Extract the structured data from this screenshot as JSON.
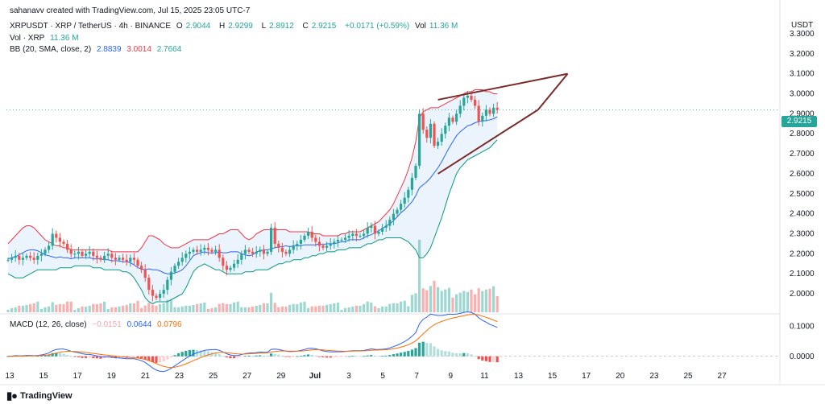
{
  "header": {
    "credit": "sahanavv created with TradingView.com, Jul 15, 2025 23:05 UTC-7",
    "symbol": "XRPUSDT · XRP / TetherUS · 4h · BINANCE",
    "o_label": "O",
    "o_value": "2.9044",
    "h_label": "H",
    "h_value": "2.9299",
    "l_label": "L",
    "l_value": "2.8912",
    "c_label": "C",
    "c_value": "2.9215",
    "change": "+0.0171 (+0.59%)",
    "vol_label": "Vol",
    "vol_value": "11.36 M",
    "vol_line_label": "Vol · XRP",
    "vol_line_value": "11.36 M",
    "bb_label": "BB (20, SMA, close, 2)",
    "bb_basis": "2.8839",
    "bb_upper": "3.0014",
    "bb_lower": "2.7664",
    "macd_label": "MACD (12, 26, close)",
    "macd_hist": "−0.0151",
    "macd_line": "0.0644",
    "macd_signal": "0.0796"
  },
  "axis_unit": "USDT",
  "last_price": "2.9215",
  "footer_logo": "TradingView",
  "colors": {
    "up": "#26a69a",
    "down": "#ef5350",
    "bb_upper": "#f23645",
    "bb_lower": "#089981",
    "bb_basis": "#2962ff",
    "bb_fill": "#e3f0fb",
    "macd": "#2962ff",
    "signal": "#ff6d00",
    "wedge": "#7b2a2a"
  },
  "chart_data": {
    "type": "candlestick",
    "timeframe": "4h",
    "x_ticks": [
      "13",
      "15",
      "17",
      "19",
      "21",
      "23",
      "25",
      "27",
      "29",
      "Jul",
      "3",
      "5",
      "7",
      "9",
      "11",
      "13",
      "15",
      "17",
      "20",
      "23",
      "25",
      "27"
    ],
    "y_ticks": [
      "3.3000",
      "3.2000",
      "3.1000",
      "3.0000",
      "2.9000",
      "2.8000",
      "2.7000",
      "2.6000",
      "2.5000",
      "2.4000",
      "2.3000",
      "2.2000",
      "2.1000",
      "2.0000"
    ],
    "ylim": [
      1.96,
      3.36
    ],
    "macd_ticks": [
      "0.1000",
      "0.0000"
    ],
    "macd_ylim": [
      -0.03,
      0.125
    ],
    "closes": [
      2.17,
      2.18,
      2.19,
      2.17,
      2.18,
      2.19,
      2.18,
      2.17,
      2.19,
      2.2,
      2.22,
      2.24,
      2.3,
      2.28,
      2.26,
      2.25,
      2.22,
      2.2,
      2.2,
      2.21,
      2.19,
      2.2,
      2.21,
      2.19,
      2.18,
      2.17,
      2.19,
      2.2,
      2.18,
      2.17,
      2.18,
      2.17,
      2.16,
      2.18,
      2.17,
      2.14,
      2.12,
      2.08,
      2.02,
      1.99,
      1.98,
      2.0,
      2.02,
      2.07,
      2.11,
      2.14,
      2.16,
      2.18,
      2.2,
      2.21,
      2.22,
      2.21,
      2.22,
      2.23,
      2.22,
      2.21,
      2.22,
      2.18,
      2.14,
      2.12,
      2.13,
      2.15,
      2.17,
      2.2,
      2.22,
      2.21,
      2.2,
      2.21,
      2.22,
      2.2,
      2.21,
      2.33,
      2.25,
      2.23,
      2.21,
      2.2,
      2.22,
      2.24,
      2.25,
      2.27,
      2.29,
      2.31,
      2.28,
      2.26,
      2.24,
      2.23,
      2.24,
      2.25,
      2.26,
      2.27,
      2.27,
      2.28,
      2.29,
      2.3,
      2.29,
      2.29,
      2.3,
      2.33,
      2.34,
      2.3,
      2.31,
      2.33,
      2.34,
      2.37,
      2.4,
      2.42,
      2.45,
      2.48,
      2.52,
      2.58,
      2.64,
      2.9,
      2.82,
      2.78,
      2.85,
      2.74,
      2.76,
      2.8,
      2.84,
      2.88,
      2.86,
      2.9,
      2.94,
      2.98,
      2.99,
      2.97,
      2.94,
      2.86,
      2.89,
      2.92,
      2.9,
      2.93,
      2.92
    ],
    "bb_upper": [
      2.25,
      2.27,
      2.29,
      2.31,
      2.33,
      2.34,
      2.34,
      2.33,
      2.31,
      2.29,
      2.27,
      2.26,
      2.25,
      2.24,
      2.24,
      2.23,
      2.23,
      2.22,
      2.22,
      2.22,
      2.22,
      2.22,
      2.22,
      2.22,
      2.22,
      2.22,
      2.22,
      2.22,
      2.21,
      2.21,
      2.21,
      2.21,
      2.21,
      2.21,
      2.21,
      2.21,
      2.23,
      2.26,
      2.29,
      2.29,
      2.28,
      2.27,
      2.25,
      2.24,
      2.23,
      2.23,
      2.23,
      2.24,
      2.25,
      2.26,
      2.27,
      2.27,
      2.27,
      2.27,
      2.27,
      2.28,
      2.29,
      2.3,
      2.3,
      2.31,
      2.32,
      2.32,
      2.32,
      2.3,
      2.28,
      2.27,
      2.28,
      2.3,
      2.31,
      2.32,
      2.32,
      2.32,
      2.32,
      2.32,
      2.32,
      2.32,
      2.31,
      2.31,
      2.31,
      2.31,
      2.31,
      2.31,
      2.3,
      2.3,
      2.3,
      2.29,
      2.29,
      2.29,
      2.29,
      2.29,
      2.3,
      2.3,
      2.31,
      2.31,
      2.31,
      2.31,
      2.32,
      2.33,
      2.34,
      2.35,
      2.36,
      2.38,
      2.4,
      2.42,
      2.45,
      2.49,
      2.53,
      2.57,
      2.62,
      2.68,
      2.76,
      2.88,
      2.91,
      2.92,
      2.93,
      2.93,
      2.93,
      2.94,
      2.95,
      2.96,
      2.97,
      2.98,
      2.99,
      3.0,
      3.01,
      3.01,
      3.02,
      3.02,
      3.02,
      3.01,
      3.01,
      3.0,
      3.0
    ],
    "bb_lower": [
      2.1,
      2.09,
      2.08,
      2.08,
      2.08,
      2.09,
      2.1,
      2.11,
      2.12,
      2.12,
      2.12,
      2.12,
      2.12,
      2.12,
      2.13,
      2.13,
      2.13,
      2.13,
      2.14,
      2.14,
      2.14,
      2.14,
      2.14,
      2.13,
      2.13,
      2.13,
      2.12,
      2.12,
      2.12,
      2.12,
      2.12,
      2.11,
      2.11,
      2.1,
      2.08,
      2.05,
      2.02,
      1.98,
      1.96,
      1.95,
      1.96,
      1.96,
      1.96,
      1.96,
      1.97,
      1.98,
      1.99,
      2.0,
      2.03,
      2.07,
      2.11,
      2.13,
      2.14,
      2.15,
      2.14,
      2.13,
      2.12,
      2.12,
      2.11,
      2.1,
      2.1,
      2.1,
      2.1,
      2.1,
      2.11,
      2.11,
      2.11,
      2.12,
      2.12,
      2.12,
      2.12,
      2.13,
      2.14,
      2.15,
      2.15,
      2.16,
      2.16,
      2.17,
      2.17,
      2.17,
      2.18,
      2.18,
      2.19,
      2.19,
      2.2,
      2.2,
      2.21,
      2.21,
      2.21,
      2.22,
      2.22,
      2.22,
      2.23,
      2.23,
      2.23,
      2.23,
      2.24,
      2.25,
      2.25,
      2.26,
      2.27,
      2.27,
      2.28,
      2.28,
      2.28,
      2.28,
      2.28,
      2.27,
      2.26,
      2.24,
      2.22,
      2.18,
      2.18,
      2.2,
      2.23,
      2.28,
      2.33,
      2.38,
      2.44,
      2.5,
      2.55,
      2.6,
      2.63,
      2.65,
      2.67,
      2.68,
      2.69,
      2.7,
      2.71,
      2.72,
      2.73,
      2.75,
      2.77
    ],
    "wedge_upper": [
      [
        116,
        2.97
      ],
      [
        151,
        3.1
      ]
    ],
    "wedge_lower": [
      [
        116,
        2.6
      ],
      [
        143,
        2.92
      ]
    ],
    "wedge_close": [
      [
        143,
        2.92
      ],
      [
        151,
        3.1
      ]
    ]
  }
}
